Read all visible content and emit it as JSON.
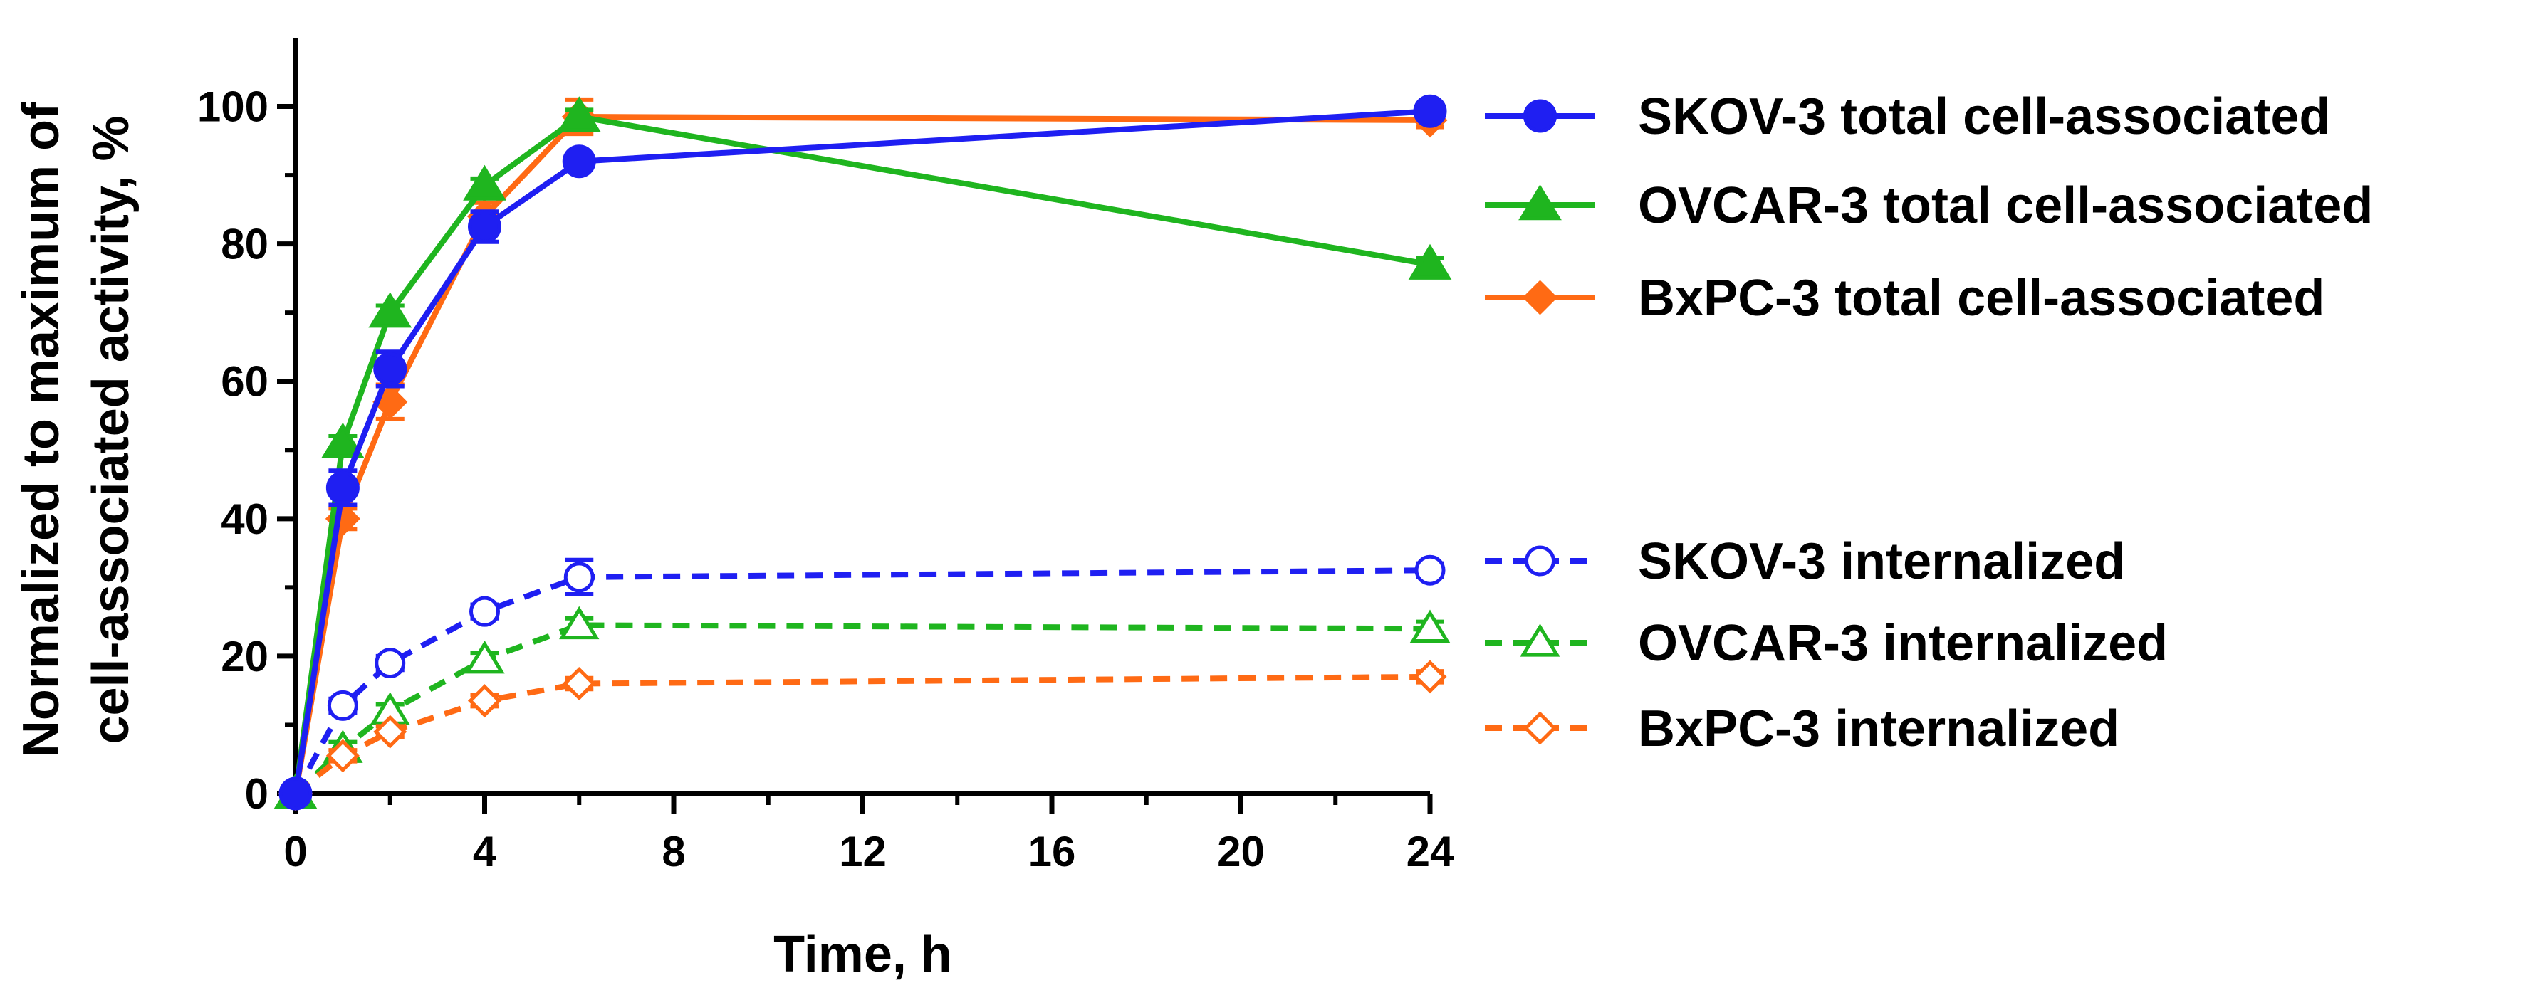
{
  "chart_data": {
    "type": "line",
    "title": "",
    "xlabel": "Time, h",
    "ylabel_lines": [
      "Normalized to maximum of",
      "cell-associated activity, %"
    ],
    "x_ticks": [
      0,
      4,
      8,
      12,
      16,
      20,
      24
    ],
    "y_ticks": [
      0,
      20,
      40,
      60,
      80,
      100
    ],
    "xlim": [
      0,
      24
    ],
    "ylim": [
      0,
      110
    ],
    "grid": false,
    "legend_position": "right",
    "series": [
      {
        "name": "SKOV-3 total cell-associated",
        "color": "#1f1ff2",
        "marker": "circle",
        "filled": true,
        "dashed": false,
        "x": [
          0,
          1,
          2,
          4,
          6,
          24
        ],
        "y": [
          0,
          44.5,
          61.8,
          82.5,
          92,
          99.3
        ],
        "err": [
          0,
          2.5,
          2.5,
          2.2,
          1,
          1
        ]
      },
      {
        "name": "OVCAR-3 total cell-associated",
        "color": "#1fb51f",
        "marker": "triangle",
        "filled": true,
        "dashed": false,
        "x": [
          0,
          1,
          2,
          4,
          6,
          24
        ],
        "y": [
          0,
          51,
          70,
          88.5,
          98.5,
          77
        ],
        "err": [
          0,
          1,
          1,
          1,
          1,
          1
        ]
      },
      {
        "name": "BxPC-3 total cell-associated",
        "color": "#ff6a14",
        "marker": "diamond",
        "filled": true,
        "dashed": false,
        "x": [
          0,
          1,
          2,
          4,
          6,
          24
        ],
        "y": [
          0,
          40,
          57,
          84,
          98.5,
          98
        ],
        "err": [
          0,
          1.5,
          2.5,
          2,
          2.5,
          1
        ]
      },
      {
        "name": "SKOV-3 internalized",
        "color": "#1f1ff2",
        "marker": "circle",
        "filled": false,
        "dashed": true,
        "x": [
          0,
          1,
          2,
          4,
          6,
          24
        ],
        "y": [
          0,
          12.8,
          19,
          26.5,
          31.5,
          32.5
        ],
        "err": [
          0,
          1,
          1,
          1,
          2.5,
          1
        ]
      },
      {
        "name": "OVCAR-3 internalized",
        "color": "#1fb51f",
        "marker": "triangle",
        "filled": false,
        "dashed": true,
        "x": [
          0,
          1,
          2,
          4,
          6,
          24
        ],
        "y": [
          0,
          6.5,
          12,
          19.5,
          24.5,
          24
        ],
        "err": [
          0,
          1,
          1,
          1,
          1,
          1
        ]
      },
      {
        "name": "BxPC-3 internalized",
        "color": "#ff6a14",
        "marker": "diamond",
        "filled": false,
        "dashed": true,
        "x": [
          0,
          1,
          2,
          4,
          6,
          24
        ],
        "y": [
          0,
          5.5,
          9,
          13.5,
          16,
          17
        ],
        "err": [
          0,
          0.8,
          0.8,
          0.8,
          0.8,
          0.8
        ]
      }
    ]
  }
}
